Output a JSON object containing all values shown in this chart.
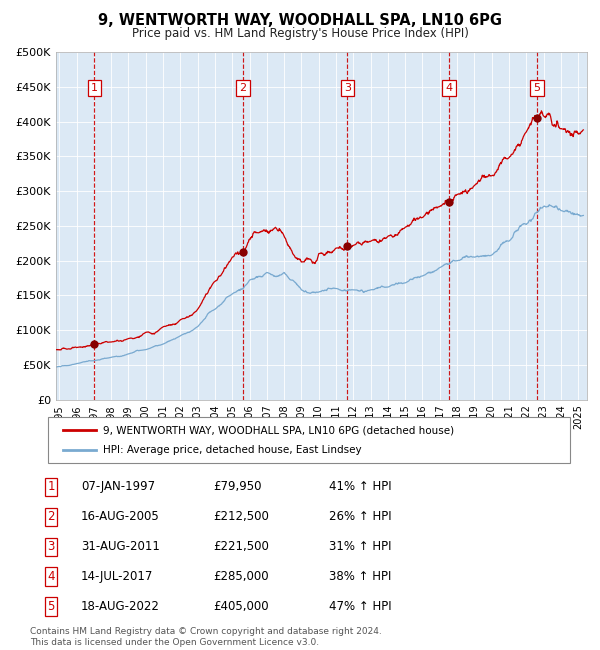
{
  "title": "9, WENTWORTH WAY, WOODHALL SPA, LN10 6PG",
  "subtitle": "Price paid vs. HM Land Registry's House Price Index (HPI)",
  "footer1": "Contains HM Land Registry data © Crown copyright and database right 2024.",
  "footer2": "This data is licensed under the Open Government Licence v3.0.",
  "legend_red": "9, WENTWORTH WAY, WOODHALL SPA, LN10 6PG (detached house)",
  "legend_blue": "HPI: Average price, detached house, East Lindsey",
  "plot_bg": "#dce9f5",
  "sale_dates_num": [
    1997.03,
    2005.62,
    2011.66,
    2017.53,
    2022.62
  ],
  "sale_prices": [
    79950,
    212500,
    221500,
    285000,
    405000
  ],
  "sale_labels": [
    "1",
    "2",
    "3",
    "4",
    "5"
  ],
  "sale_pct": [
    "41%",
    "26%",
    "31%",
    "38%",
    "47%"
  ],
  "sale_date_str": [
    "07-JAN-1997",
    "16-AUG-2005",
    "31-AUG-2011",
    "14-JUL-2017",
    "18-AUG-2022"
  ],
  "sale_price_str": [
    "£79,950",
    "£212,500",
    "£221,500",
    "£285,000",
    "£405,000"
  ],
  "ylim": [
    0,
    500000
  ],
  "yticks": [
    0,
    50000,
    100000,
    150000,
    200000,
    250000,
    300000,
    350000,
    400000,
    450000,
    500000
  ],
  "ytick_labels": [
    "£0",
    "£50K",
    "£100K",
    "£150K",
    "£200K",
    "£250K",
    "£300K",
    "£350K",
    "£400K",
    "£450K",
    "£500K"
  ],
  "xlim_start": 1994.8,
  "xlim_end": 2025.5,
  "red_color": "#cc0000",
  "blue_color": "#7aaad0",
  "marker_color": "#880000",
  "red_x_anchors": [
    1994.8,
    1995.5,
    1996.0,
    1997.03,
    1998,
    1999,
    2000,
    2001,
    2002,
    2003,
    2004,
    2005.0,
    2005.62,
    2006.5,
    2007.5,
    2008.0,
    2008.5,
    2009.0,
    2009.5,
    2010.0,
    2011.0,
    2011.66,
    2012.0,
    2013.0,
    2014.0,
    2015.0,
    2016.0,
    2017.0,
    2017.53,
    2018.0,
    2019.0,
    2020.0,
    2021.0,
    2022.0,
    2022.62,
    2023.0,
    2023.5,
    2024.0,
    2025.3
  ],
  "red_y_anchors": [
    72000,
    73000,
    75000,
    79950,
    83000,
    88000,
    97000,
    105000,
    115000,
    130000,
    170000,
    205000,
    212500,
    240000,
    248000,
    235000,
    210000,
    198000,
    202000,
    210000,
    218000,
    221500,
    222000,
    228000,
    235000,
    248000,
    262000,
    278000,
    285000,
    295000,
    308000,
    322000,
    348000,
    385000,
    405000,
    408000,
    395000,
    390000,
    388000
  ],
  "blue_x_anchors": [
    1994.8,
    1995.5,
    1996.0,
    1997.0,
    1998.0,
    1999.0,
    2000.0,
    2001.0,
    2002.0,
    2003.0,
    2004.0,
    2005.0,
    2006.0,
    2007.0,
    2008.0,
    2008.5,
    2009.0,
    2009.5,
    2010.0,
    2011.0,
    2012.0,
    2013.0,
    2014.0,
    2015.0,
    2016.0,
    2017.0,
    2018.0,
    2019.0,
    2020.0,
    2021.0,
    2022.0,
    2022.5,
    2023.0,
    2023.5,
    2024.0,
    2025.3
  ],
  "blue_y_anchors": [
    47000,
    49000,
    52000,
    56000,
    61000,
    66000,
    72000,
    80000,
    92000,
    105000,
    130000,
    152000,
    172000,
    183000,
    183000,
    172000,
    158000,
    153000,
    155000,
    160000,
    158000,
    158000,
    162000,
    168000,
    178000,
    190000,
    200000,
    205000,
    208000,
    228000,
    252000,
    268000,
    278000,
    278000,
    272000,
    265000
  ]
}
